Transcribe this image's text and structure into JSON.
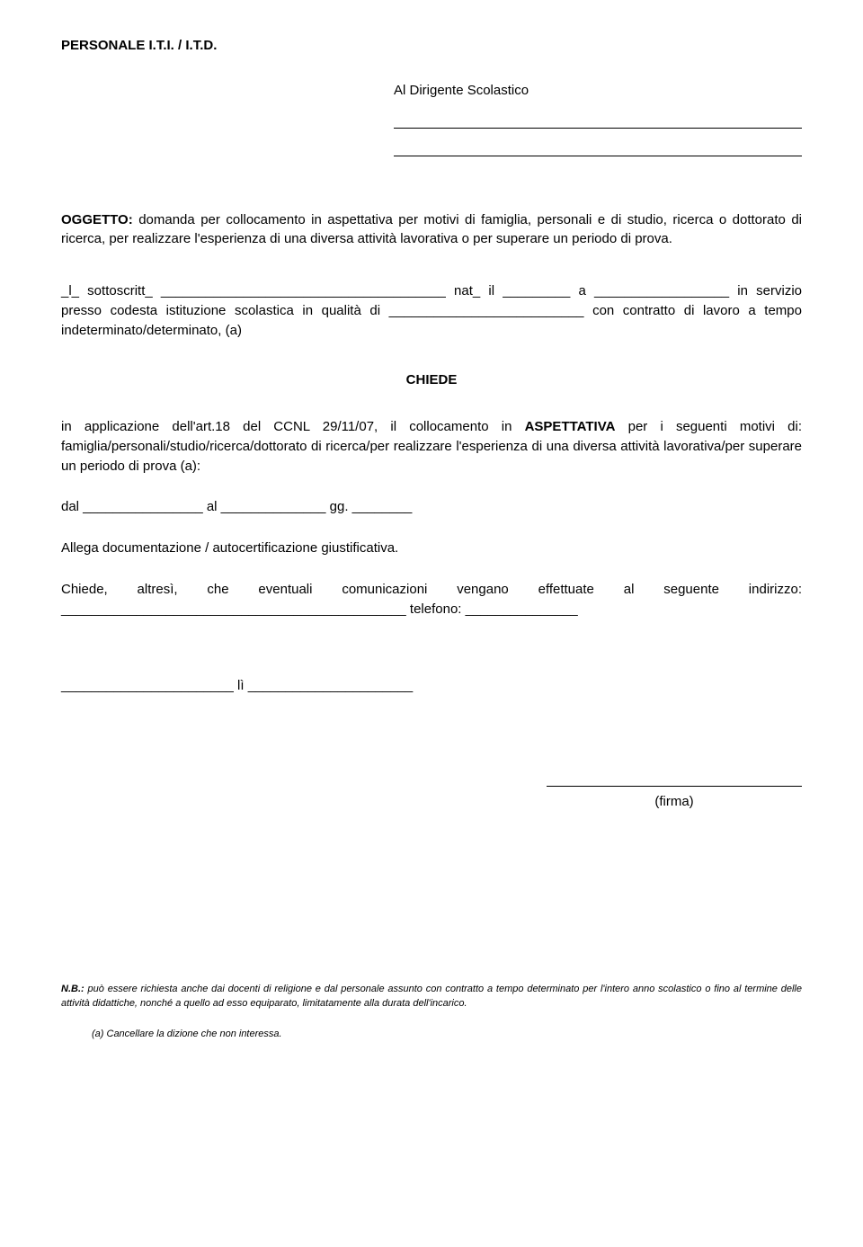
{
  "header": "PERSONALE I.T.I. / I.T.D.",
  "addressee": "Al Dirigente Scolastico",
  "oggetto_label": "OGGETTO:",
  "oggetto_text": " domanda per collocamento in aspettativa per motivi di famiglia, personali e di studio, ricerca o dottorato di ricerca, per realizzare l'esperienza di una diversa attività lavorativa o per superare un periodo di prova.",
  "body1": "_l_ sottoscritt_ ______________________________________ nat_ il _________ a __________________ in servizio presso codesta istituzione scolastica in qualità di __________________________ con contratto di lavoro a tempo ",
  "body1_bold": "indeterminato/determinato",
  "body1_tail": ", (a)",
  "chiede": "CHIEDE",
  "main_pre": "in applicazione dell'art.18 del CCNL 29/11/07, il collocamento in ",
  "main_bold": "ASPETTATIVA",
  "main_post": " per i seguenti motivi di: famiglia/personali/studio/ricerca/dottorato di ricerca/per realizzare l'esperienza di una diversa attività lavorativa/per superare un periodo di prova (a):",
  "dal": "dal ________________ al ______________ gg. ________",
  "allega": "Allega documentazione / autocertificazione giustificativa.",
  "altr1": "Chiede, altresì, che eventuali comunicazioni vengano effettuate al seguente indirizzo: ______________________________________________ telefono: _______________",
  "li": "_______________________ lì ______________________",
  "firma": "(firma)",
  "nb_label": "N.B.:",
  "nb_text": " può essere richiesta anche dai docenti di religione e dal personale assunto con contratto a tempo determinato per l'intero anno scolastico o fino al termine delle attività didattiche, nonché a quello ad esso equiparato, limitatamente alla durata dell'incarico.",
  "note_a": "(a)  Cancellare la dizione che non interessa."
}
